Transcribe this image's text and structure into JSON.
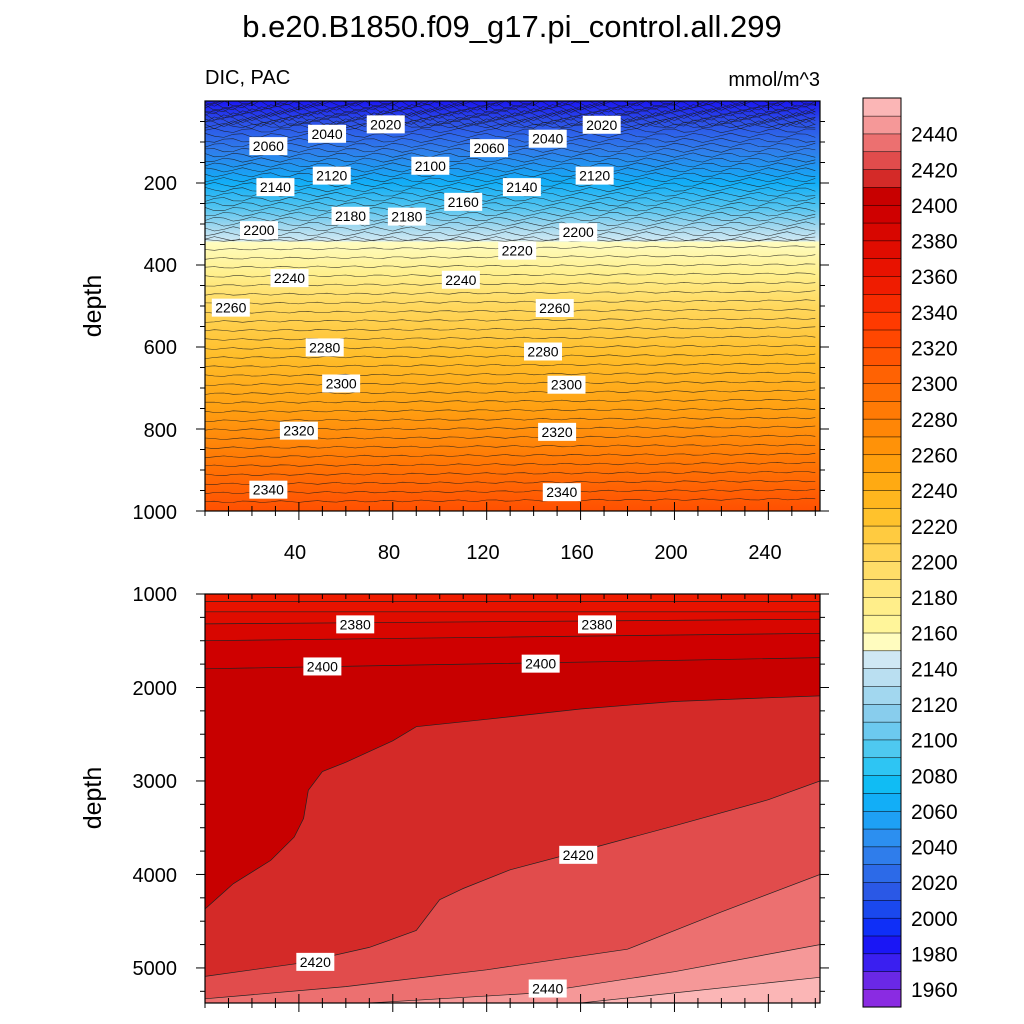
{
  "chart_data": {
    "type": "contour",
    "title": "b.e20.B1850.f09_g17.pi_control.all.299",
    "variable_label": "DIC, PAC",
    "units": "mmol/m^3",
    "ylabel": "depth",
    "xlim": [
      0,
      262
    ],
    "x_ticks": [
      "40",
      "80",
      "120",
      "160",
      "200",
      "240"
    ],
    "upper_panel": {
      "ylim": [
        0,
        1000
      ],
      "y_ticks": [
        "200",
        "400",
        "600",
        "800",
        "1000"
      ],
      "contour_labels": [
        {
          "text": "2020",
          "x": 77,
          "y": 57
        },
        {
          "text": "2040",
          "x": 52,
          "y": 80
        },
        {
          "text": "2060",
          "x": 27,
          "y": 110
        },
        {
          "text": "2060",
          "x": 121,
          "y": 115
        },
        {
          "text": "2040",
          "x": 146,
          "y": 92
        },
        {
          "text": "2020",
          "x": 169,
          "y": 58
        },
        {
          "text": "2100",
          "x": 96,
          "y": 158
        },
        {
          "text": "2120",
          "x": 54,
          "y": 182
        },
        {
          "text": "2120",
          "x": 166,
          "y": 182
        },
        {
          "text": "2140",
          "x": 30,
          "y": 210
        },
        {
          "text": "2140",
          "x": 135,
          "y": 210
        },
        {
          "text": "2160",
          "x": 110,
          "y": 246
        },
        {
          "text": "2180",
          "x": 62,
          "y": 280
        },
        {
          "text": "2180",
          "x": 86,
          "y": 282
        },
        {
          "text": "2200",
          "x": 23,
          "y": 315
        },
        {
          "text": "2200",
          "x": 159,
          "y": 320
        },
        {
          "text": "2220",
          "x": 133,
          "y": 365
        },
        {
          "text": "2240",
          "x": 36,
          "y": 432
        },
        {
          "text": "2240",
          "x": 109,
          "y": 436
        },
        {
          "text": "2260",
          "x": 11,
          "y": 504
        },
        {
          "text": "2260",
          "x": 149,
          "y": 505
        },
        {
          "text": "2280",
          "x": 51,
          "y": 601
        },
        {
          "text": "2280",
          "x": 144,
          "y": 611
        },
        {
          "text": "2300",
          "x": 58,
          "y": 689
        },
        {
          "text": "2300",
          "x": 154,
          "y": 692
        },
        {
          "text": "2320",
          "x": 40,
          "y": 804
        },
        {
          "text": "2320",
          "x": 150,
          "y": 807
        },
        {
          "text": "2340",
          "x": 27,
          "y": 948
        },
        {
          "text": "2340",
          "x": 152,
          "y": 954
        }
      ]
    },
    "lower_panel": {
      "ylim": [
        1000,
        5375
      ],
      "y_ticks": [
        "1000",
        "2000",
        "3000",
        "4000",
        "5000"
      ],
      "contour_labels": [
        {
          "text": "2380",
          "x": 64,
          "y": 1325
        },
        {
          "text": "2380",
          "x": 167,
          "y": 1325
        },
        {
          "text": "2400",
          "x": 50,
          "y": 1775
        },
        {
          "text": "2400",
          "x": 143,
          "y": 1745
        },
        {
          "text": "2420",
          "x": 159,
          "y": 3790
        },
        {
          "text": "2420",
          "x": 47,
          "y": 4935
        },
        {
          "text": "2440",
          "x": 146,
          "y": 5220
        }
      ],
      "boundaries": [
        {
          "value": 2360,
          "x": [
            0,
            262
          ],
          "y": [
            1080,
            1080
          ]
        },
        {
          "value": 2370,
          "x": [
            0,
            262
          ],
          "y": [
            1190,
            1190
          ]
        },
        {
          "value": 2380,
          "x": [
            0,
            262
          ],
          "y": [
            1320,
            1270
          ]
        },
        {
          "value": 2390,
          "x": [
            0,
            131,
            262
          ],
          "y": [
            1500,
            1460,
            1420
          ]
        },
        {
          "value": 2400,
          "x": [
            0,
            90,
            180,
            262
          ],
          "y": [
            1800,
            1760,
            1720,
            1680
          ]
        },
        {
          "value": 2410,
          "x": [
            0,
            12,
            28,
            38,
            42,
            44,
            50,
            60,
            80,
            90,
            120,
            160,
            200,
            240,
            262
          ],
          "y": [
            4370,
            4100,
            3850,
            3600,
            3400,
            3100,
            2900,
            2800,
            2570,
            2420,
            2340,
            2230,
            2150,
            2110,
            2090
          ]
        },
        {
          "value": 2420,
          "x": [
            0,
            40,
            70,
            90,
            100,
            110,
            130,
            160,
            200,
            240,
            262
          ],
          "y": [
            5090,
            4950,
            4780,
            4600,
            4270,
            4150,
            3950,
            3750,
            3480,
            3200,
            3000
          ]
        },
        {
          "value": 2430,
          "x": [
            0,
            60,
            120,
            180,
            220,
            262
          ],
          "y": [
            5330,
            5200,
            5020,
            4800,
            4400,
            4000
          ]
        },
        {
          "value": 2440,
          "x": [
            70,
            140,
            200,
            262
          ],
          "y": [
            5375,
            5270,
            5040,
            4750
          ]
        },
        {
          "value": 2450,
          "x": [
            160,
            262
          ],
          "y": [
            5375,
            5100
          ]
        }
      ]
    },
    "colorbar": {
      "labels": [
        "2440",
        "2420",
        "2400",
        "2380",
        "2360",
        "2340",
        "2320",
        "2300",
        "2280",
        "2260",
        "2240",
        "2220",
        "2200",
        "2180",
        "2160",
        "2140",
        "2120",
        "2100",
        "2080",
        "2060",
        "2040",
        "2020",
        "2000",
        "1980",
        "1960"
      ],
      "levels_min": 1950,
      "levels_max": 2460,
      "step": 10,
      "colors_low_to_high": [
        "#8a2be2",
        "#6a28e6",
        "#3a1ff0",
        "#1a16f5",
        "#0f2ff7",
        "#1a48ee",
        "#2a58e6",
        "#2c6ae8",
        "#2f7deb",
        "#2c8ff0",
        "#1ea0f5",
        "#12aef7",
        "#10bcf4",
        "#2ec5f3",
        "#4ec9f0",
        "#6cc9ef",
        "#88cded",
        "#a2d7ef",
        "#badff1",
        "#cfe8f4",
        "#fffcbf",
        "#fff59a",
        "#ffee8a",
        "#ffe67a",
        "#ffdd68",
        "#ffd354",
        "#ffcb40",
        "#ffc22c",
        "#ffb61e",
        "#ffaa12",
        "#ff9e0c",
        "#ff9208",
        "#ff8606",
        "#ff7a05",
        "#ff6e04",
        "#ff6203",
        "#ff5402",
        "#ff4701",
        "#ff3a00",
        "#f72a00",
        "#ef1c00",
        "#e81200",
        "#e00c00",
        "#d80600",
        "#cf0000",
        "#c80000",
        "#d42a28",
        "#e14c4c",
        "#ec7070",
        "#f59898",
        "#fbb6b6"
      ]
    }
  }
}
